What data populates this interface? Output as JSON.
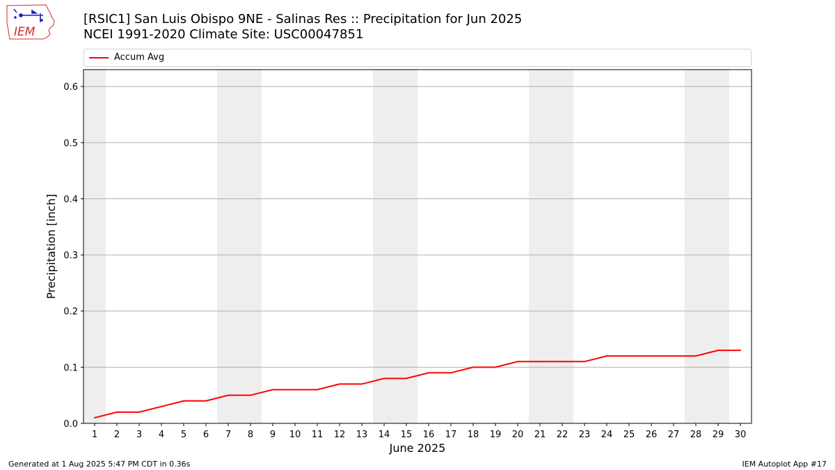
{
  "header": {
    "title_line1": "[RSIC1] San Luis Obispo 9NE - Salinas Res :: Precipitation for Jun 2025",
    "title_line2": "NCEI 1991-2020 Climate Site: USC00047851",
    "logo_text": "IEM"
  },
  "footer": {
    "generated": "Generated at 1 Aug 2025 5:47 PM CDT in 0.36s",
    "app": "IEM Autoplot App #17"
  },
  "colors": {
    "series": "#ff0000",
    "weekend_band": "#eeeeee",
    "grid": "#b0b0b0",
    "logo_red": "#d62728",
    "logo_blue": "#1a1acc"
  },
  "chart_data": {
    "type": "line",
    "xlabel": "June 2025",
    "ylabel": "Precipitation [inch]",
    "xlim": [
      0.5,
      30.5
    ],
    "ylim": [
      0,
      0.63
    ],
    "yticks": [
      0.0,
      0.1,
      0.2,
      0.3,
      0.4,
      0.5,
      0.6
    ],
    "ytick_labels": [
      "0.0",
      "0.1",
      "0.2",
      "0.3",
      "0.4",
      "0.5",
      "0.6"
    ],
    "x": [
      1,
      2,
      3,
      4,
      5,
      6,
      7,
      8,
      9,
      10,
      11,
      12,
      13,
      14,
      15,
      16,
      17,
      18,
      19,
      20,
      21,
      22,
      23,
      24,
      25,
      26,
      27,
      28,
      29,
      30
    ],
    "xtick_labels": [
      "1",
      "2",
      "3",
      "4",
      "5",
      "6",
      "7",
      "8",
      "9",
      "10",
      "11",
      "12",
      "13",
      "14",
      "15",
      "16",
      "17",
      "18",
      "19",
      "20",
      "21",
      "22",
      "23",
      "24",
      "25",
      "26",
      "27",
      "28",
      "29",
      "30"
    ],
    "weekend_days": [
      1,
      7,
      8,
      14,
      15,
      21,
      22,
      28,
      29
    ],
    "grid": "horizontal",
    "legend_position": "top",
    "series": [
      {
        "name": "Accum Avg",
        "values": [
          0.01,
          0.02,
          0.02,
          0.03,
          0.04,
          0.04,
          0.05,
          0.05,
          0.06,
          0.06,
          0.06,
          0.07,
          0.07,
          0.08,
          0.08,
          0.09,
          0.09,
          0.1,
          0.1,
          0.11,
          0.11,
          0.11,
          0.11,
          0.12,
          0.12,
          0.12,
          0.12,
          0.12,
          0.13,
          0.13
        ]
      }
    ]
  }
}
